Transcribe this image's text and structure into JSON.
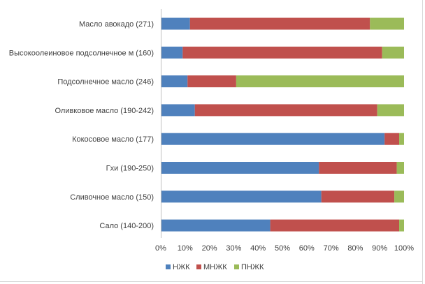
{
  "chart_data": {
    "type": "bar",
    "orientation": "horizontal",
    "stacked": "percent",
    "categories": [
      "Масло авокадо (271)",
      "Высокоолеиновое подсолнечное м (160)",
      "Подсолнечное масло (246)",
      "Оливковое масло (190-242)",
      "Кокосовое масло (177)",
      "Гхи (190-250)",
      "Сливочное масло (150)",
      "Сало (140-200)"
    ],
    "series": [
      {
        "name": "НЖК",
        "color": "#4f81bd",
        "values": [
          12,
          9,
          11,
          14,
          92,
          65,
          66,
          45
        ]
      },
      {
        "name": "МНЖК",
        "color": "#c0504d",
        "values": [
          74,
          82,
          20,
          75,
          6,
          32,
          30,
          53
        ]
      },
      {
        "name": "ПНЖК",
        "color": "#9bbb59",
        "values": [
          14,
          9,
          69,
          11,
          2,
          3,
          4,
          2
        ]
      }
    ],
    "x_ticks": [
      "0%",
      "10%",
      "20%",
      "30%",
      "40%",
      "50%",
      "60%",
      "70%",
      "80%",
      "90%",
      "100%"
    ],
    "xlim": [
      0,
      100
    ],
    "grid": false,
    "legend_position": "bottom",
    "title": "",
    "xlabel": "",
    "ylabel": ""
  }
}
